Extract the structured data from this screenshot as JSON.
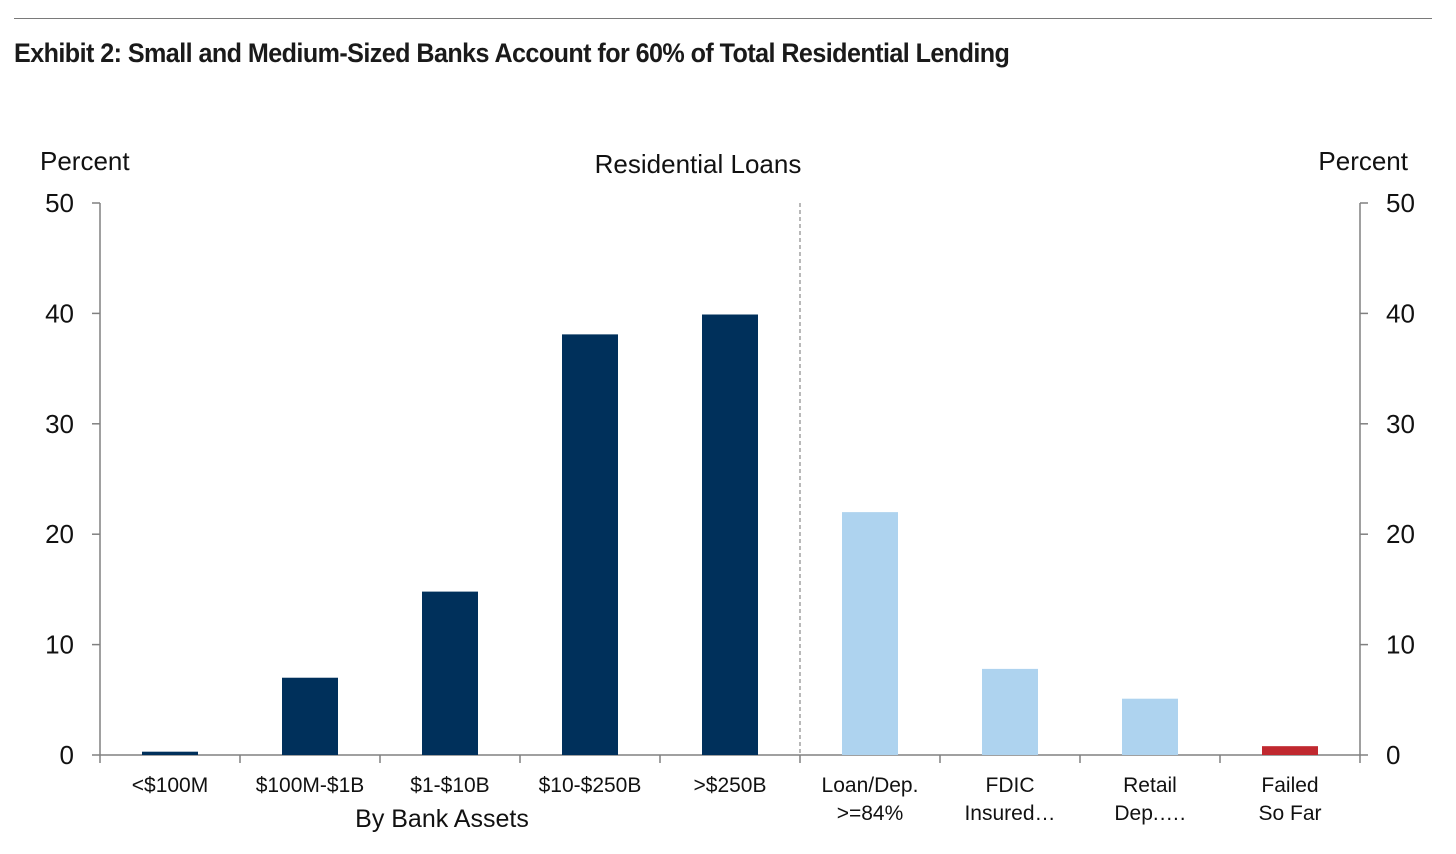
{
  "title": "Exhibit 2: Small and Medium-Sized Banks Account for 60% of Total Residential Lending",
  "chart_data": {
    "type": "bar",
    "title": "Residential Loans",
    "ylabel_left": "Percent",
    "ylabel_right": "Percent",
    "ylim": [
      0,
      50
    ],
    "yticks": [
      0,
      10,
      20,
      30,
      40,
      50
    ],
    "grid": false,
    "group_label": "By Bank Assets",
    "divider_after_index": 4,
    "colors": {
      "dark_navy": "#00305b",
      "light_blue": "#aed3ef",
      "red": "#c0282f"
    },
    "categories": [
      [
        "<$100M"
      ],
      [
        "$100M-$1B"
      ],
      [
        "$1-$10B"
      ],
      [
        "$10-$250B"
      ],
      [
        ">$250B"
      ],
      [
        "Loan/Dep.",
        ">=84%"
      ],
      [
        "FDIC",
        "Insured…"
      ],
      [
        "Retail",
        "Dep.…."
      ],
      [
        "Failed",
        "So Far"
      ]
    ],
    "values": [
      0.3,
      7.0,
      14.8,
      38.1,
      39.9,
      22.0,
      7.8,
      5.1,
      0.8
    ],
    "bar_colors": [
      "dark_navy",
      "dark_navy",
      "dark_navy",
      "dark_navy",
      "dark_navy",
      "light_blue",
      "light_blue",
      "light_blue",
      "red"
    ]
  }
}
